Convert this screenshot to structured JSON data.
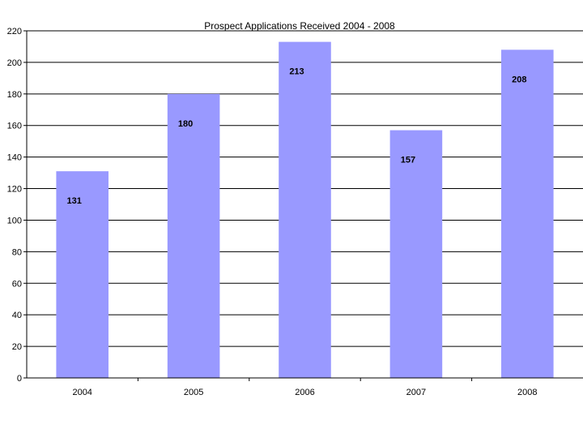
{
  "chart_data": {
    "type": "bar",
    "title": "Prospect  Applications Received 2004 - 2008",
    "xlabel": "",
    "ylabel": "",
    "categories": [
      "2004",
      "2005",
      "2006",
      "2007",
      "2008"
    ],
    "values": [
      131,
      180,
      213,
      157,
      208
    ],
    "data_labels": [
      "131",
      "180",
      "213",
      "157",
      "208"
    ],
    "ylim": [
      0,
      220
    ],
    "yticks": [
      0,
      20,
      40,
      60,
      80,
      100,
      120,
      140,
      160,
      180,
      200,
      220
    ],
    "grid": true,
    "legend": "none",
    "bar_color": "#9999ff"
  }
}
